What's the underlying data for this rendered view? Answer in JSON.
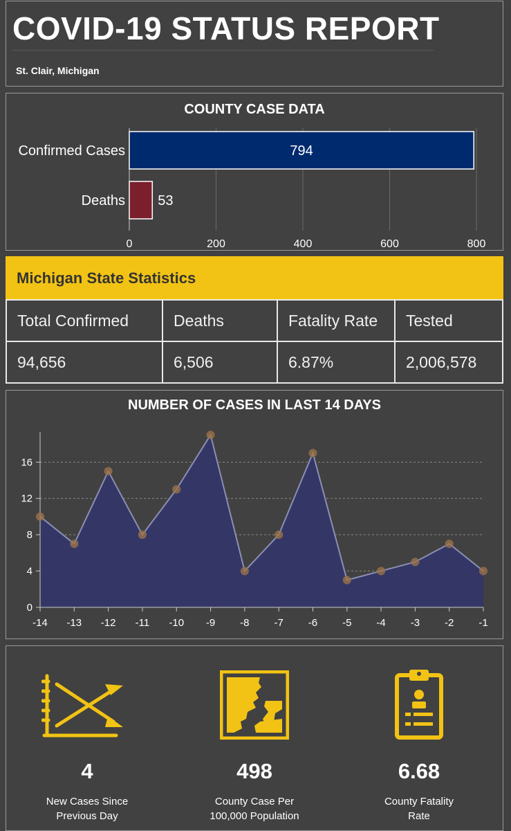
{
  "header": {
    "title": "COVID-19 STATUS REPORT",
    "location": "St. Clair, Michigan"
  },
  "county": {
    "title": "COUNTY CASE DATA",
    "chart_data": {
      "type": "bar",
      "orientation": "horizontal",
      "title": "COUNTY CASE DATA",
      "categories": [
        "Confirmed Cases",
        "Deaths"
      ],
      "values": [
        794,
        53
      ],
      "colors": [
        "#002a6e",
        "#7a1f2b"
      ],
      "xlim": [
        0,
        800
      ],
      "xticks": [
        0,
        200,
        400,
        600,
        800
      ],
      "grid": true
    }
  },
  "state": {
    "title": "Michigan State Statistics",
    "headers": [
      "Total Confirmed",
      "Deaths",
      "Fatality Rate",
      "Tested"
    ],
    "values": [
      "94,656",
      "6,506",
      "6.87%",
      "2,006,578"
    ]
  },
  "trend": {
    "title": "NUMBER OF CASES IN LAST 14 DAYS",
    "chart_data": {
      "type": "area",
      "title": "NUMBER OF CASES IN LAST 14 DAYS",
      "x": [
        -14,
        -13,
        -12,
        -11,
        -10,
        -9,
        -8,
        -7,
        -6,
        -5,
        -4,
        -3,
        -2,
        -1
      ],
      "y": [
        10,
        7,
        15,
        8,
        13,
        19,
        4,
        8,
        17,
        3,
        4,
        5,
        7,
        4
      ],
      "ylim": [
        0,
        19
      ],
      "yticks": [
        0,
        4,
        8,
        12,
        16
      ],
      "grid": "horizontal dashed",
      "fill_color": "#343766",
      "marker_color": "#a0744a"
    }
  },
  "stats": [
    {
      "value": "4",
      "label_line1": "New Cases Since",
      "label_line2": "Previous Day",
      "icon": "trend-crossing-arrows-icon"
    },
    {
      "value": "498",
      "label_line1": "County Case Per",
      "label_line2": "100,000 Population",
      "icon": "county-map-icon"
    },
    {
      "value": "6.68",
      "label_line1": "County Fatality",
      "label_line2": "Rate",
      "icon": "clipboard-icon"
    }
  ],
  "colors": {
    "accent": "#f2c314",
    "background": "#414141"
  }
}
